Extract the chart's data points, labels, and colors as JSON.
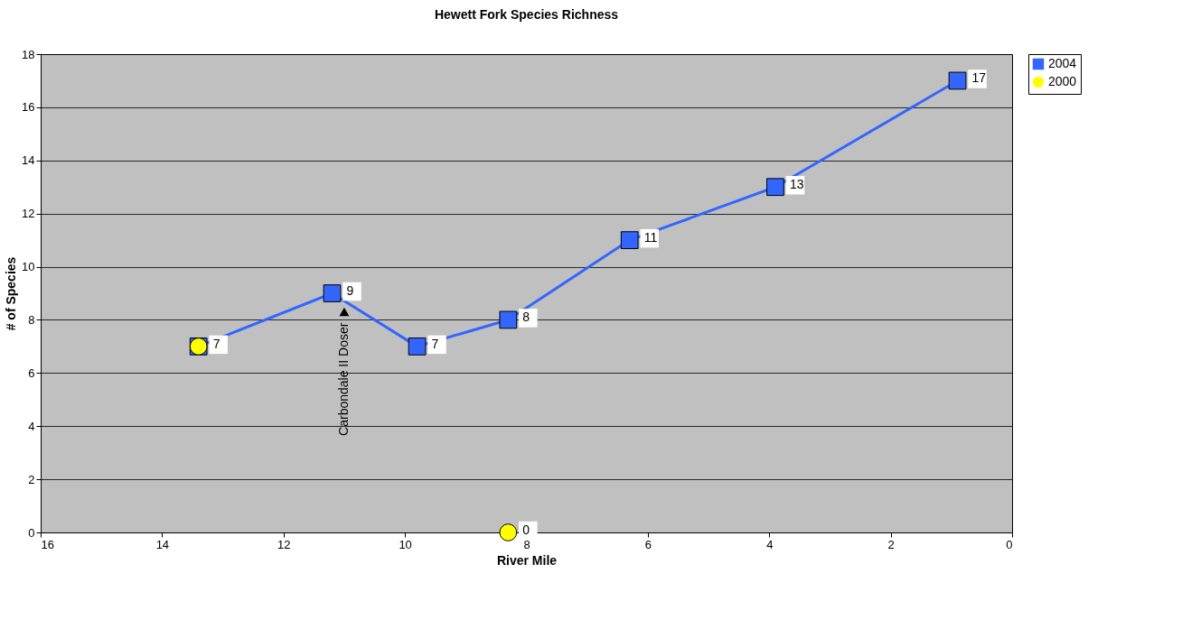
{
  "chart_data": {
    "type": "line",
    "title": "Hewett Fork Species Richness",
    "xlabel": "River Mile",
    "ylabel": "# of Species",
    "xlim": [
      16,
      0
    ],
    "xticks": [
      0,
      2,
      4,
      6,
      8,
      10,
      12,
      14,
      16
    ],
    "ylim": [
      0,
      18
    ],
    "yticks": [
      0,
      2,
      4,
      6,
      8,
      10,
      12,
      14,
      16,
      18
    ],
    "series": [
      {
        "name": "2004",
        "color": "#3366ff",
        "marker": "square",
        "x": [
          13.4,
          11.2,
          9.8,
          8.3,
          6.3,
          3.9,
          0.9
        ],
        "values": [
          7,
          9,
          7,
          8,
          11,
          13,
          17
        ],
        "value_labels": [
          "7",
          "9",
          "7",
          "8",
          "11",
          "13",
          "17"
        ]
      },
      {
        "name": "2000",
        "type": "scatter",
        "color": "#ffff00",
        "marker": "circle",
        "x": [
          13.4,
          8.3
        ],
        "values": [
          7,
          0
        ],
        "value_labels": [
          null,
          "0"
        ]
      }
    ],
    "annotations": [
      {
        "text": "Carbondale II Doser",
        "x": 11.0,
        "y": 8.3
      }
    ],
    "grid": "y",
    "legend": "right",
    "line_style": "solid"
  }
}
